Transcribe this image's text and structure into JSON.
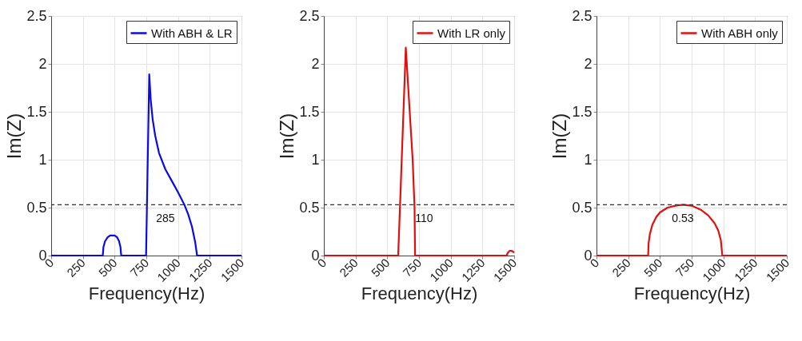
{
  "chart_data": [
    {
      "type": "line",
      "xlabel": "Frequency(Hz)",
      "ylabel": "Im(Z)",
      "xlim": [
        0,
        1500
      ],
      "ylim": [
        0,
        2.5
      ],
      "xticks": [
        0,
        250,
        500,
        750,
        1000,
        1250,
        1500
      ],
      "yticks": [
        0,
        0.5,
        1,
        1.5,
        2,
        2.5
      ],
      "grid": true,
      "legend": "top right",
      "series": [
        {
          "name": "With ABH & LR",
          "color": "#0a0ae6",
          "x": [
            0,
            407,
            412,
            425,
            445,
            465,
            483,
            500,
            520,
            535,
            546,
            552,
            748,
            773,
            785,
            800,
            820,
            850,
            900,
            950,
            1000,
            1050,
            1080,
            1110,
            1135,
            1150,
            1500
          ],
          "values": [
            0,
            0,
            0.09,
            0.15,
            0.19,
            0.21,
            0.21,
            0.21,
            0.19,
            0.15,
            0.09,
            0,
            0,
            1.89,
            1.62,
            1.42,
            1.25,
            1.07,
            0.9,
            0.78,
            0.66,
            0.53,
            0.43,
            0.3,
            0.14,
            0,
            0
          ]
        }
      ],
      "ref_lines": [
        {
          "axis": "y",
          "value": 0.53,
          "color": "#333333",
          "line_style": "dashed"
        }
      ],
      "annotations": [
        {
          "text": "285",
          "x": 900,
          "y": 0.53
        }
      ]
    },
    {
      "type": "line",
      "xlabel": "Frequency(Hz)",
      "ylabel": "Im(Z)",
      "xlim": [
        0,
        1500
      ],
      "ylim": [
        0,
        2.5
      ],
      "xticks": [
        0,
        250,
        500,
        750,
        1000,
        1250,
        1500
      ],
      "yticks": [
        0,
        0.5,
        1,
        1.5,
        2,
        2.5
      ],
      "grid": true,
      "legend": "top right",
      "series": [
        {
          "name": "With LR only",
          "color": "#e01010",
          "x": [
            0,
            586,
            600,
            646,
            700,
            715,
            719,
            1441,
            1450,
            1465,
            1480,
            1492,
            1500
          ],
          "values": [
            0,
            0,
            0.5,
            2.17,
            1.0,
            0.5,
            0,
            0,
            0.03,
            0.05,
            0.05,
            0.04,
            0.03
          ]
        }
      ],
      "ref_lines": [
        {
          "axis": "y",
          "value": 0.53,
          "color": "#333333",
          "line_style": "dashed"
        }
      ],
      "annotations": [
        {
          "text": "110",
          "x": 790,
          "y": 0.53
        }
      ]
    },
    {
      "type": "line",
      "xlabel": "Frequency(Hz)",
      "ylabel": "Im(Z)",
      "xlim": [
        0,
        1500
      ],
      "ylim": [
        0,
        2.5
      ],
      "xticks": [
        0,
        250,
        500,
        750,
        1000,
        1250,
        1500
      ],
      "yticks": [
        0,
        0.5,
        1,
        1.5,
        2,
        2.5
      ],
      "grid": true,
      "legend": "top right",
      "series": [
        {
          "name": "With ABH only",
          "color": "#e01010",
          "x": [
            0,
            407,
            410,
            420,
            440,
            470,
            500,
            560,
            620,
            680,
            750,
            820,
            880,
            930,
            960,
            980,
            992,
            1500
          ],
          "values": [
            0,
            0,
            0.12,
            0.22,
            0.32,
            0.4,
            0.45,
            0.5,
            0.52,
            0.53,
            0.52,
            0.48,
            0.42,
            0.34,
            0.26,
            0.16,
            0,
            0
          ]
        }
      ],
      "ref_lines": [
        {
          "axis": "y",
          "value": 0.53,
          "color": "#333333",
          "line_style": "dashed"
        }
      ],
      "annotations": [
        {
          "text": "0.53",
          "x": 680,
          "y": 0.53
        }
      ]
    }
  ]
}
